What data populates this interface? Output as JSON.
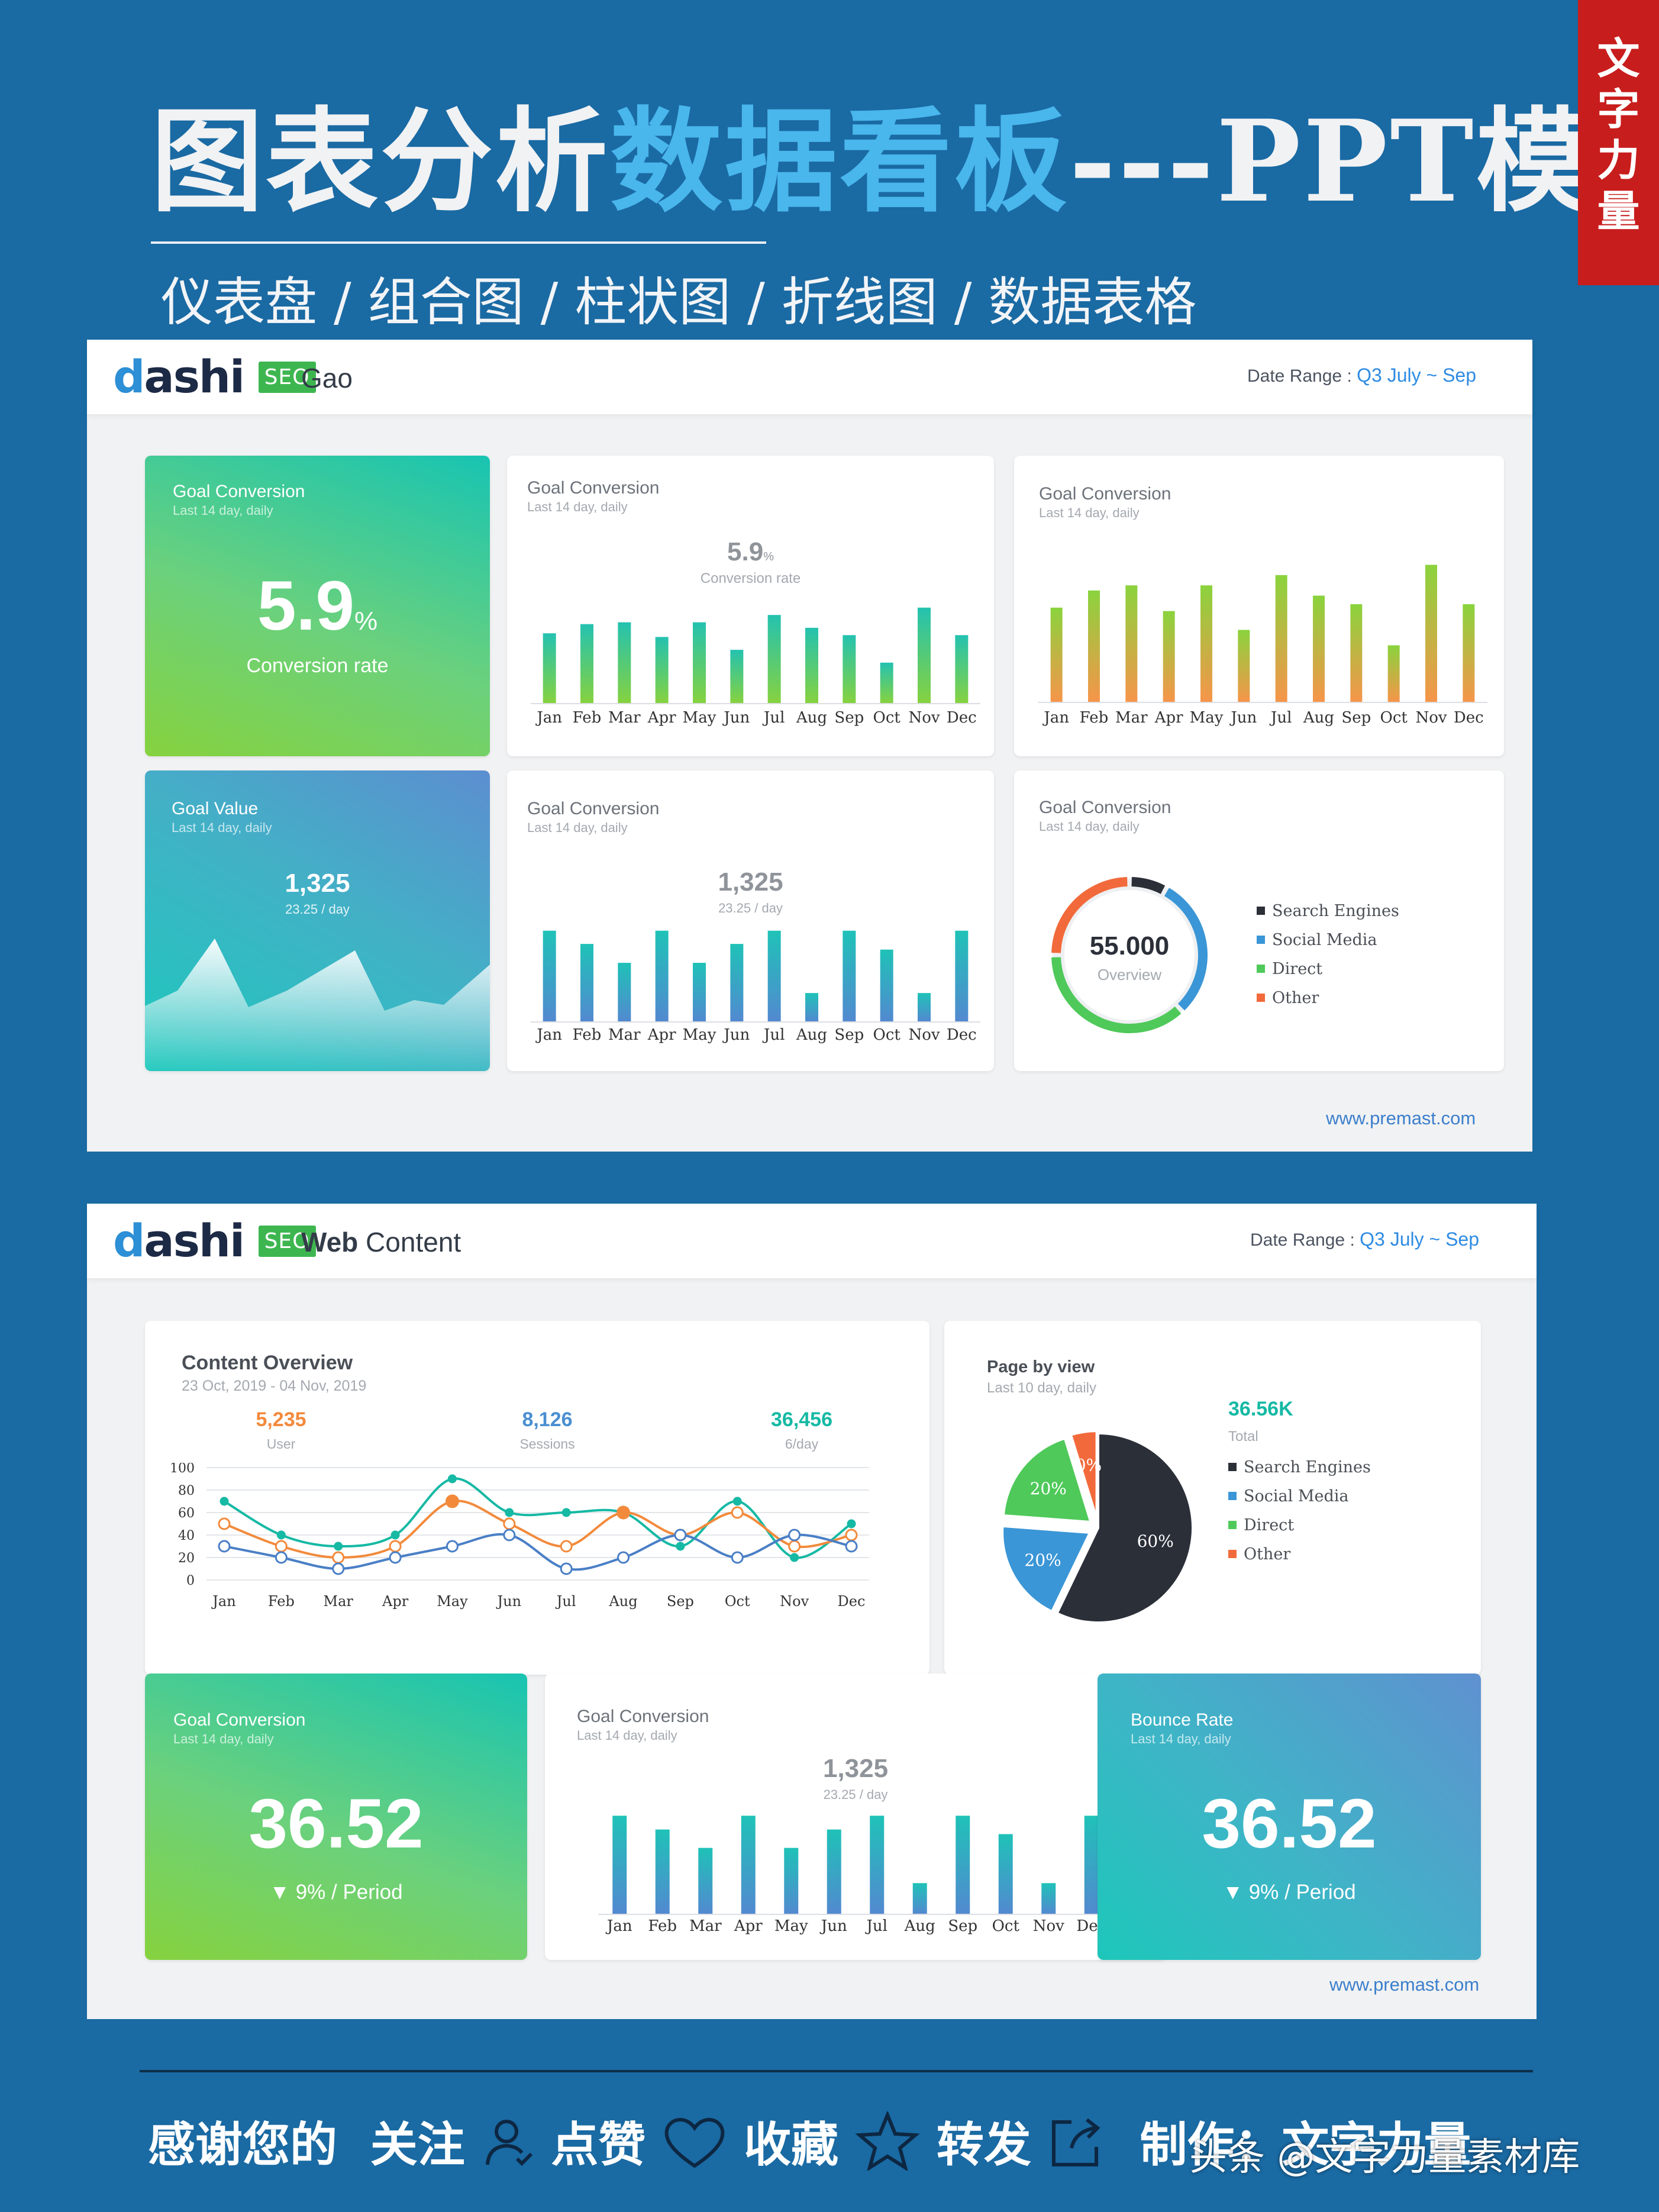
{
  "header": {
    "title_part1": "图表分析",
    "title_part2": "数据看板",
    "title_part3": "---PPT模板",
    "subtitle": "仪表盘 / 组合图 / 柱状图 / 折线图 / 数据表格",
    "tag": [
      "文",
      "字",
      "力",
      "量"
    ]
  },
  "months": [
    "Jan",
    "Feb",
    "Mar",
    "Apr",
    "May",
    "Jun",
    "Jul",
    "Aug",
    "Sep",
    "Oct",
    "Nov",
    "Dec"
  ],
  "panel1": {
    "logo_text": "ashi",
    "logo_d": "d",
    "seo": "SEO",
    "name": "Gao",
    "date_label": "Date Range : ",
    "date_q": "Q3",
    "date_range": " July ~ Sep",
    "url": "www.premast.com",
    "card1": {
      "title": "Goal Conversion",
      "sub": "Last 14 day, daily",
      "value": "5.9",
      "unit": "%",
      "label": "Conversion rate"
    },
    "card2": {
      "title": "Goal Conversion",
      "sub": "Last 14 day, daily",
      "value": "5.9",
      "unit": "%",
      "label": "Conversion rate",
      "bars": [
        38,
        43,
        44,
        36,
        44,
        29,
        48,
        41,
        37,
        22,
        52,
        37
      ]
    },
    "card3": {
      "title": "Goal Conversion",
      "sub": "Last 14 day, daily",
      "bars": [
        55,
        65,
        68,
        53,
        68,
        42,
        74,
        62,
        57,
        33,
        80,
        57
      ]
    },
    "card4": {
      "title": "Goal Value",
      "sub": "Last 14 day, daily",
      "value": "1,325",
      "label": "23.25 / day"
    },
    "card5": {
      "title": "Goal Conversion",
      "sub": "Last 14 day, daily",
      "value": "1,325",
      "label": "23.25 / day",
      "bars": [
        48,
        41,
        31,
        48,
        31,
        41,
        48,
        15,
        48,
        38,
        15,
        48
      ]
    },
    "card6": {
      "title": "Goal Conversion",
      "sub": "Last 14 day, daily",
      "value": "55.000",
      "label": "Overview",
      "legend": [
        {
          "name": "Search Engines",
          "color": "#2b2f38"
        },
        {
          "name": "Social Media",
          "color": "#3a96d6"
        },
        {
          "name": "Direct",
          "color": "#4fc95a"
        },
        {
          "name": "Other",
          "color": "#f26a3b"
        }
      ]
    }
  },
  "panel2": {
    "logo_text": "ashi",
    "logo_d": "d",
    "seo": "SEO",
    "name_bold": "Web",
    "name_rest": " Content",
    "date_label": "Date Range : ",
    "date_q": "Q3",
    "date_range": " July ~ Sep",
    "url": "www.premast.com",
    "overview": {
      "title": "Content Overview",
      "sub": "23 Oct, 2019 - 04 Nov, 2019",
      "stats": [
        {
          "value": "5,235",
          "label": "User",
          "color": "#f28a3c"
        },
        {
          "value": "8,126",
          "label": "Sessions",
          "color": "#4a8fd1"
        },
        {
          "value": "36,456",
          "label": "6/day",
          "color": "#16b9a4"
        }
      ],
      "yticks": [
        "100",
        "80",
        "60",
        "40",
        "20",
        "0"
      ]
    },
    "pageview": {
      "title": "Page by view",
      "sub": "Last 10 day, daily",
      "total": "36.56K",
      "total_label": "Total",
      "slice_labels": [
        "60%",
        "20%",
        "20%",
        "0%"
      ],
      "legend": [
        {
          "name": "Search Engines",
          "color": "#2b2f38"
        },
        {
          "name": "Social Media",
          "color": "#3a96d6"
        },
        {
          "name": "Direct",
          "color": "#4fc95a"
        },
        {
          "name": "Other",
          "color": "#f26a3b"
        }
      ]
    },
    "card_goal": {
      "title": "Goal Conversion",
      "sub": "Last 14 day, daily",
      "value": "36.52",
      "delta": "▼  9%   / Period"
    },
    "card_bars": {
      "title": "Goal Conversion",
      "sub": "Last 14 day, daily",
      "value": "1,325",
      "label": "23.25 / day",
      "bars": [
        64,
        55,
        43,
        64,
        43,
        55,
        64,
        20,
        64,
        52,
        20,
        64
      ]
    },
    "card_bounce": {
      "title": "Bounce Rate",
      "sub": "Last 14 day, daily",
      "value": "36.52",
      "delta": "▼  9%   / Period"
    }
  },
  "footer": {
    "thanks": "感谢您的",
    "follow": "关注",
    "like": "点赞",
    "fav": "收藏",
    "share": "转发",
    "maker": "制作：文字力量",
    "watermark": "头条 @文字力量素材库"
  },
  "chart_data": [
    {
      "type": "line",
      "title": "Content Overview",
      "categories": [
        "Jan",
        "Feb",
        "Mar",
        "Apr",
        "May",
        "Jun",
        "Jul",
        "Aug",
        "Sep",
        "Oct",
        "Nov",
        "Dec"
      ],
      "ylim": [
        0,
        100
      ],
      "series": [
        {
          "color": "#16b9a4",
          "values": [
            70,
            40,
            30,
            40,
            90,
            60,
            60,
            60,
            30,
            70,
            20,
            50
          ]
        },
        {
          "color": "#f28a3c",
          "values": [
            50,
            30,
            20,
            30,
            70,
            50,
            30,
            60,
            40,
            60,
            30,
            40
          ]
        },
        {
          "color": "#4a7fc6",
          "values": [
            30,
            20,
            10,
            20,
            30,
            40,
            10,
            20,
            40,
            20,
            40,
            30
          ]
        }
      ]
    },
    {
      "type": "pie",
      "title": "Page by view",
      "categories": [
        "Search Engines",
        "Social Media",
        "Direct",
        "Other"
      ],
      "values": [
        60,
        20,
        20,
        0
      ]
    },
    {
      "type": "pie",
      "categories": [
        "Search Engines",
        "Social Media",
        "Direct",
        "Other"
      ],
      "values": [
        8,
        30,
        37,
        25
      ]
    }
  ]
}
